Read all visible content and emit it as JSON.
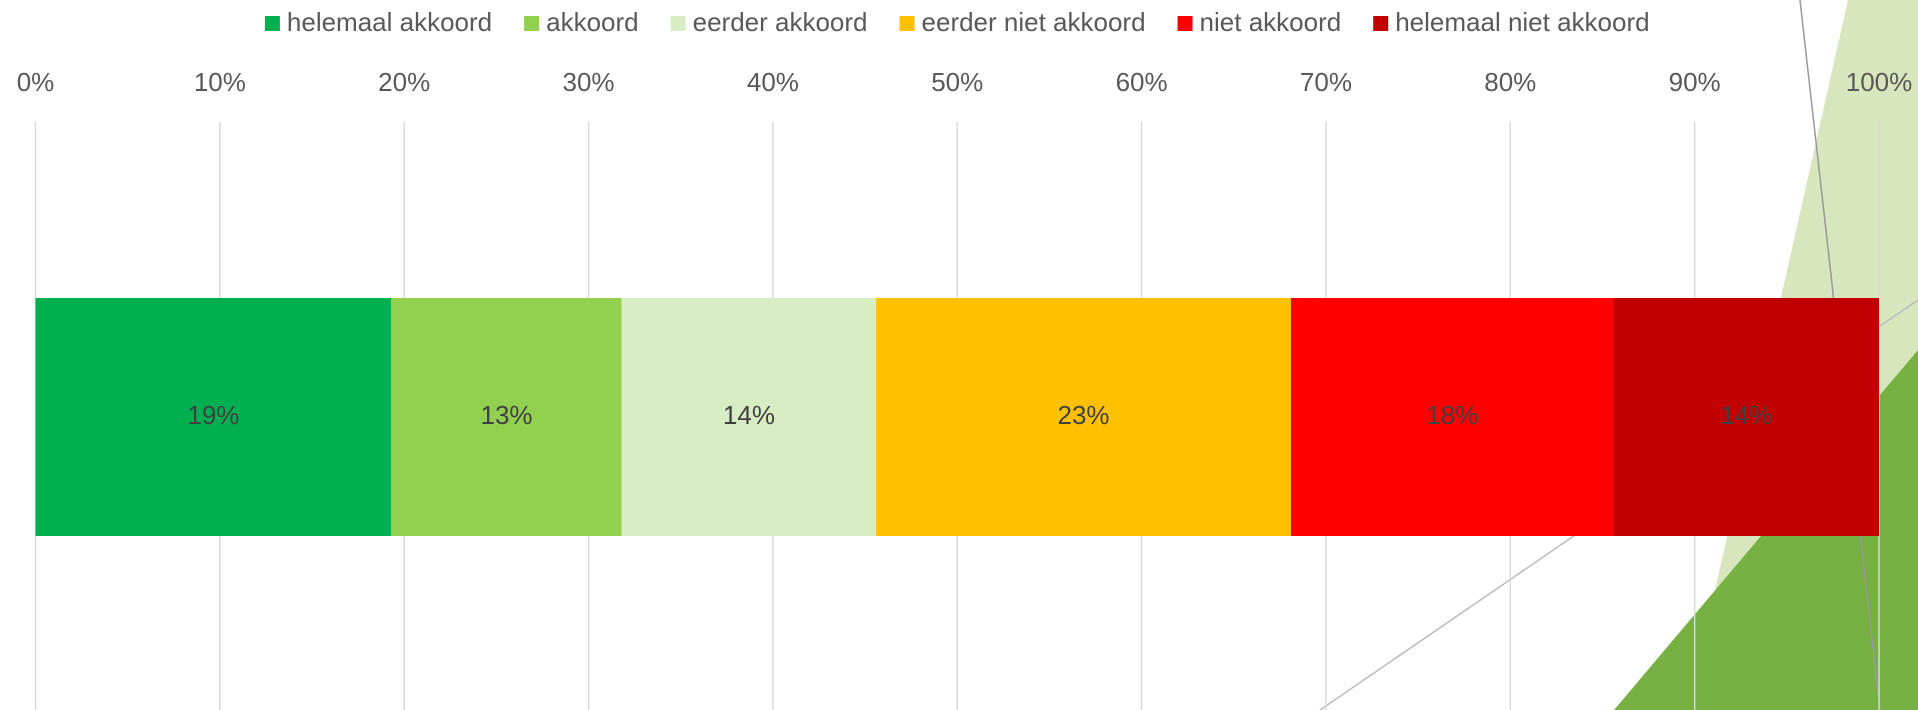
{
  "chart_data": {
    "type": "stacked-bar-horizontal",
    "categories": [
      null
    ],
    "series": [
      {
        "name": "helemaal akkoord",
        "color": "#00b050",
        "values": [
          19.3
        ],
        "value_labels": [
          "19%"
        ]
      },
      {
        "name": "akkoord",
        "color": "#92d050",
        "values": [
          12.5
        ],
        "value_labels": [
          "13%"
        ]
      },
      {
        "name": "eerder akkoord",
        "color": "#d8edc4",
        "values": [
          13.8
        ],
        "value_labels": [
          "14%"
        ]
      },
      {
        "name": "eerder niet akkoord",
        "color": "#ffc000",
        "values": [
          22.5
        ],
        "value_labels": [
          "23%"
        ]
      },
      {
        "name": "niet akkoord",
        "color": "#ff0000",
        "values": [
          17.5
        ],
        "value_labels": [
          "18%"
        ]
      },
      {
        "name": "helemaal niet akkoord",
        "color": "#c00000",
        "values": [
          14.4
        ],
        "value_labels": [
          "14%"
        ]
      }
    ],
    "xlim": [
      0,
      100
    ],
    "xticks": [
      {
        "value": 0,
        "label": "0%"
      },
      {
        "value": 10,
        "label": "10%"
      },
      {
        "value": 20,
        "label": "20%"
      },
      {
        "value": 30,
        "label": "30%"
      },
      {
        "value": 40,
        "label": "40%"
      },
      {
        "value": 50,
        "label": "50%"
      },
      {
        "value": 60,
        "label": "60%"
      },
      {
        "value": 70,
        "label": "70%"
      },
      {
        "value": 80,
        "label": "80%"
      },
      {
        "value": 90,
        "label": "90%"
      },
      {
        "value": 100,
        "label": "100%"
      }
    ],
    "grid": true,
    "legend": "top"
  }
}
